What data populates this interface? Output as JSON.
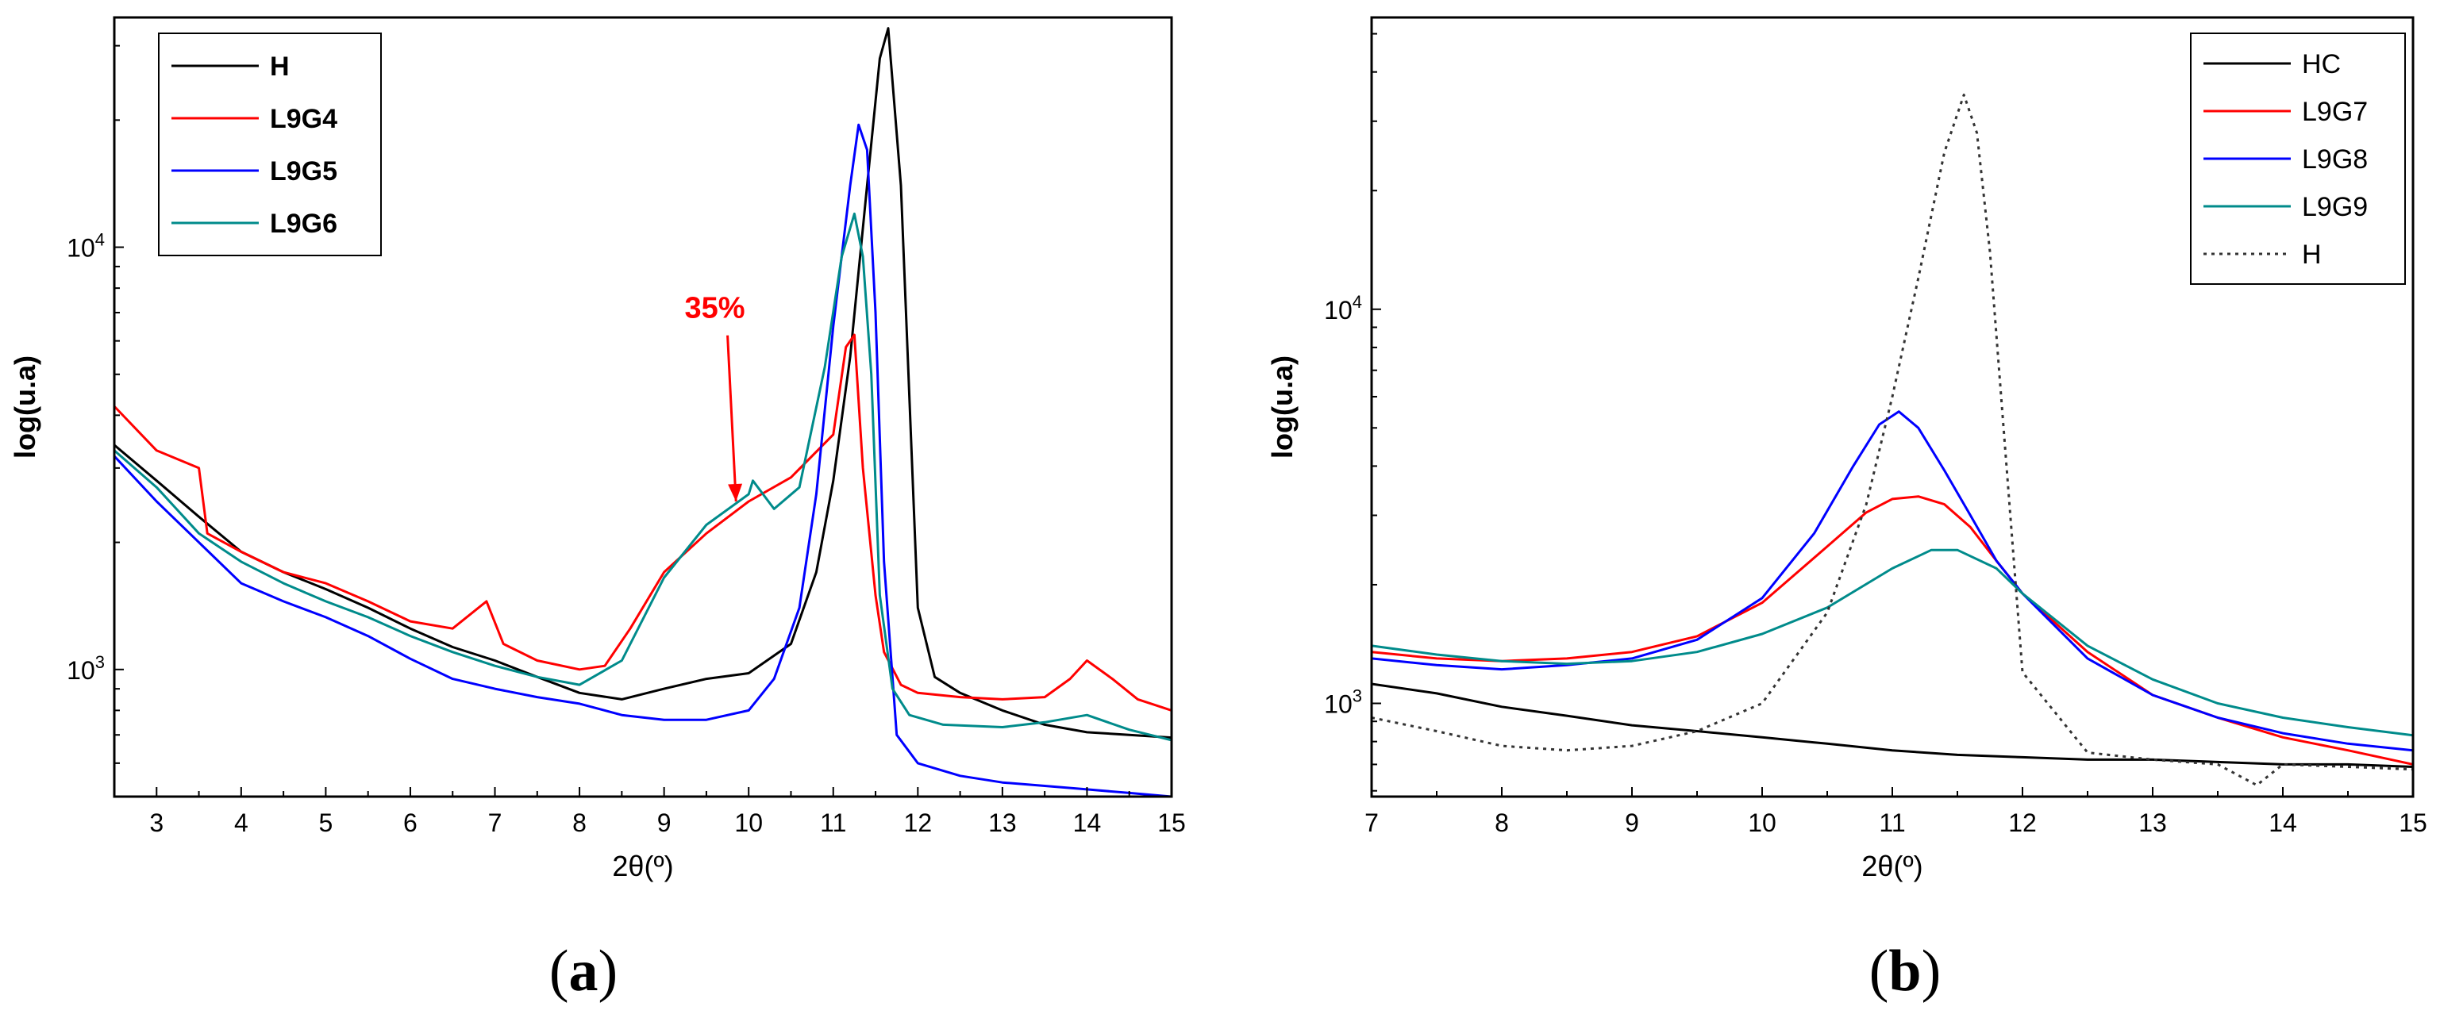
{
  "chart_data": [
    {
      "type": "line",
      "panel_label": "a",
      "xlabel": "2θ(º)",
      "ylabel": "log(u.a)",
      "xlim": [
        2.5,
        15
      ],
      "ylim": [
        500,
        35000
      ],
      "yscale": "log",
      "x_ticks": [
        3,
        4,
        5,
        6,
        7,
        8,
        9,
        10,
        11,
        12,
        13,
        14,
        15
      ],
      "x_tick_labels": [
        "3",
        "4",
        "5",
        "6",
        "7",
        "8",
        "9",
        "10",
        "11",
        "12",
        "13",
        "14",
        "15"
      ],
      "y_ticks": [
        1000,
        10000
      ],
      "y_tick_labels": [
        {
          "base": "10",
          "exp": "3"
        },
        {
          "base": "10",
          "exp": "4"
        }
      ],
      "legend_position": "top-left",
      "legend_bold": true,
      "annotation": {
        "text": "35%",
        "color": "#ff0000",
        "text_at": [
          9.6,
          6800
        ],
        "arrow_to": [
          9.85,
          2500
        ]
      },
      "series": [
        {
          "name": "H",
          "color": "#000000",
          "x": [
            2.5,
            3,
            3.5,
            4,
            4.5,
            5,
            5.5,
            6,
            6.5,
            7,
            7.5,
            8,
            8.5,
            9,
            9.5,
            10,
            10.5,
            10.8,
            11,
            11.2,
            11.4,
            11.55,
            11.65,
            11.8,
            12,
            12.2,
            12.5,
            13,
            13.5,
            14,
            14.5,
            15
          ],
          "y": [
            3400,
            2800,
            2300,
            1900,
            1700,
            1550,
            1400,
            1250,
            1130,
            1050,
            960,
            880,
            850,
            900,
            950,
            980,
            1150,
            1700,
            2800,
            5500,
            14000,
            28000,
            33000,
            14000,
            1400,
            960,
            880,
            800,
            740,
            710,
            700,
            690
          ]
        },
        {
          "name": "L9G4",
          "color": "#ff0000",
          "x": [
            2.5,
            3,
            3.5,
            3.6,
            4,
            4.5,
            5,
            5.5,
            6,
            6.5,
            6.9,
            7.1,
            7.5,
            8,
            8.3,
            8.6,
            9,
            9.5,
            10,
            10.5,
            11,
            11.15,
            11.25,
            11.35,
            11.5,
            11.6,
            11.8,
            12,
            12.5,
            13,
            13.5,
            13.8,
            14,
            14.3,
            14.6,
            15
          ],
          "y": [
            4200,
            3300,
            3000,
            2100,
            1900,
            1700,
            1600,
            1450,
            1300,
            1250,
            1450,
            1150,
            1050,
            1000,
            1020,
            1250,
            1700,
            2100,
            2500,
            2850,
            3600,
            5800,
            6200,
            3000,
            1500,
            1100,
            920,
            880,
            860,
            850,
            860,
            950,
            1050,
            950,
            850,
            800
          ]
        },
        {
          "name": "L9G5",
          "color": "#0000ff",
          "x": [
            2.5,
            3,
            3.5,
            4,
            4.5,
            5,
            5.5,
            6,
            6.5,
            7,
            7.5,
            8,
            8.5,
            9,
            9.5,
            10,
            10.3,
            10.6,
            10.8,
            11,
            11.2,
            11.3,
            11.4,
            11.5,
            11.6,
            11.75,
            12,
            12.5,
            13,
            13.5,
            14,
            14.5,
            15
          ],
          "y": [
            3200,
            2500,
            2000,
            1600,
            1450,
            1330,
            1200,
            1060,
            950,
            900,
            860,
            830,
            780,
            760,
            760,
            800,
            950,
            1400,
            2600,
            6500,
            14000,
            19500,
            17000,
            7000,
            1800,
            700,
            600,
            560,
            540,
            530,
            520,
            510,
            500
          ]
        },
        {
          "name": "L9G6",
          "color": "#008b8b",
          "x": [
            2.5,
            3,
            3.5,
            4,
            4.5,
            5,
            5.5,
            6,
            6.5,
            7,
            7.5,
            8,
            8.5,
            9,
            9.5,
            10,
            10.05,
            10.3,
            10.6,
            10.9,
            11.1,
            11.25,
            11.35,
            11.45,
            11.55,
            11.7,
            11.9,
            12.3,
            13,
            13.5,
            14,
            14.5,
            15
          ],
          "y": [
            3300,
            2700,
            2100,
            1800,
            1600,
            1450,
            1330,
            1200,
            1100,
            1020,
            960,
            920,
            1050,
            1650,
            2200,
            2600,
            2800,
            2400,
            2700,
            5200,
            9500,
            12000,
            9500,
            5000,
            1500,
            900,
            780,
            740,
            730,
            750,
            780,
            720,
            680
          ]
        }
      ]
    },
    {
      "type": "line",
      "panel_label": "b",
      "xlabel": "2θ(º)",
      "ylabel": "log(u.a)",
      "xlim": [
        7,
        15
      ],
      "ylim": [
        580,
        55000
      ],
      "yscale": "log",
      "x_ticks": [
        7,
        8,
        9,
        10,
        11,
        12,
        13,
        14,
        15
      ],
      "x_tick_labels": [
        "7",
        "8",
        "9",
        "10",
        "11",
        "12",
        "13",
        "14",
        "15"
      ],
      "y_ticks": [
        1000,
        10000
      ],
      "y_tick_labels": [
        {
          "base": "10",
          "exp": "3"
        },
        {
          "base": "10",
          "exp": "4"
        }
      ],
      "legend_position": "top-right",
      "legend_bold": false,
      "series": [
        {
          "name": "HC",
          "color": "#000000",
          "dash": "solid",
          "x": [
            7,
            7.5,
            8,
            8.5,
            9,
            9.5,
            10,
            10.5,
            11,
            11.5,
            12,
            12.5,
            13,
            13.5,
            14,
            14.5,
            15
          ],
          "y": [
            1120,
            1060,
            980,
            930,
            880,
            850,
            820,
            790,
            760,
            740,
            730,
            720,
            720,
            710,
            700,
            700,
            690
          ]
        },
        {
          "name": "L9G7",
          "color": "#ff0000",
          "dash": "solid",
          "x": [
            7,
            7.5,
            8,
            8.5,
            9,
            9.5,
            10,
            10.5,
            10.8,
            11,
            11.2,
            11.4,
            11.6,
            11.8,
            12,
            12.5,
            13,
            13.5,
            14,
            14.5,
            15
          ],
          "y": [
            1350,
            1300,
            1280,
            1300,
            1350,
            1480,
            1800,
            2500,
            3050,
            3300,
            3350,
            3200,
            2800,
            2300,
            1900,
            1350,
            1050,
            920,
            820,
            760,
            700
          ]
        },
        {
          "name": "L9G8",
          "color": "#0000ff",
          "dash": "solid",
          "x": [
            7,
            7.5,
            8,
            8.5,
            9,
            9.5,
            10,
            10.4,
            10.7,
            10.9,
            11.05,
            11.2,
            11.4,
            11.6,
            11.8,
            12,
            12.5,
            13,
            13.5,
            14,
            14.5,
            15
          ],
          "y": [
            1300,
            1250,
            1220,
            1250,
            1300,
            1450,
            1850,
            2700,
            4000,
            5100,
            5500,
            5000,
            3900,
            3000,
            2300,
            1900,
            1300,
            1050,
            920,
            840,
            790,
            760
          ]
        },
        {
          "name": "L9G9",
          "color": "#008b8b",
          "dash": "solid",
          "x": [
            7,
            7.5,
            8,
            8.5,
            9,
            9.5,
            10,
            10.5,
            11,
            11.3,
            11.5,
            11.8,
            12,
            12.5,
            13,
            13.5,
            14,
            14.5,
            15
          ],
          "y": [
            1400,
            1330,
            1280,
            1260,
            1280,
            1350,
            1500,
            1750,
            2200,
            2450,
            2450,
            2200,
            1900,
            1400,
            1150,
            1000,
            920,
            870,
            830
          ]
        },
        {
          "name": "H",
          "color": "#333333",
          "dash": "dotted",
          "x": [
            7,
            7.5,
            8,
            8.5,
            9,
            9.5,
            10,
            10.5,
            10.8,
            11,
            11.2,
            11.4,
            11.55,
            11.65,
            11.75,
            11.9,
            12,
            12.5,
            13,
            13.5,
            13.8,
            14,
            14.5,
            15
          ],
          "y": [
            920,
            850,
            780,
            760,
            780,
            850,
            1000,
            1700,
            3200,
            6000,
            12000,
            25000,
            35000,
            28000,
            14000,
            3200,
            1200,
            750,
            720,
            700,
            620,
            700,
            690,
            680
          ]
        }
      ]
    }
  ]
}
